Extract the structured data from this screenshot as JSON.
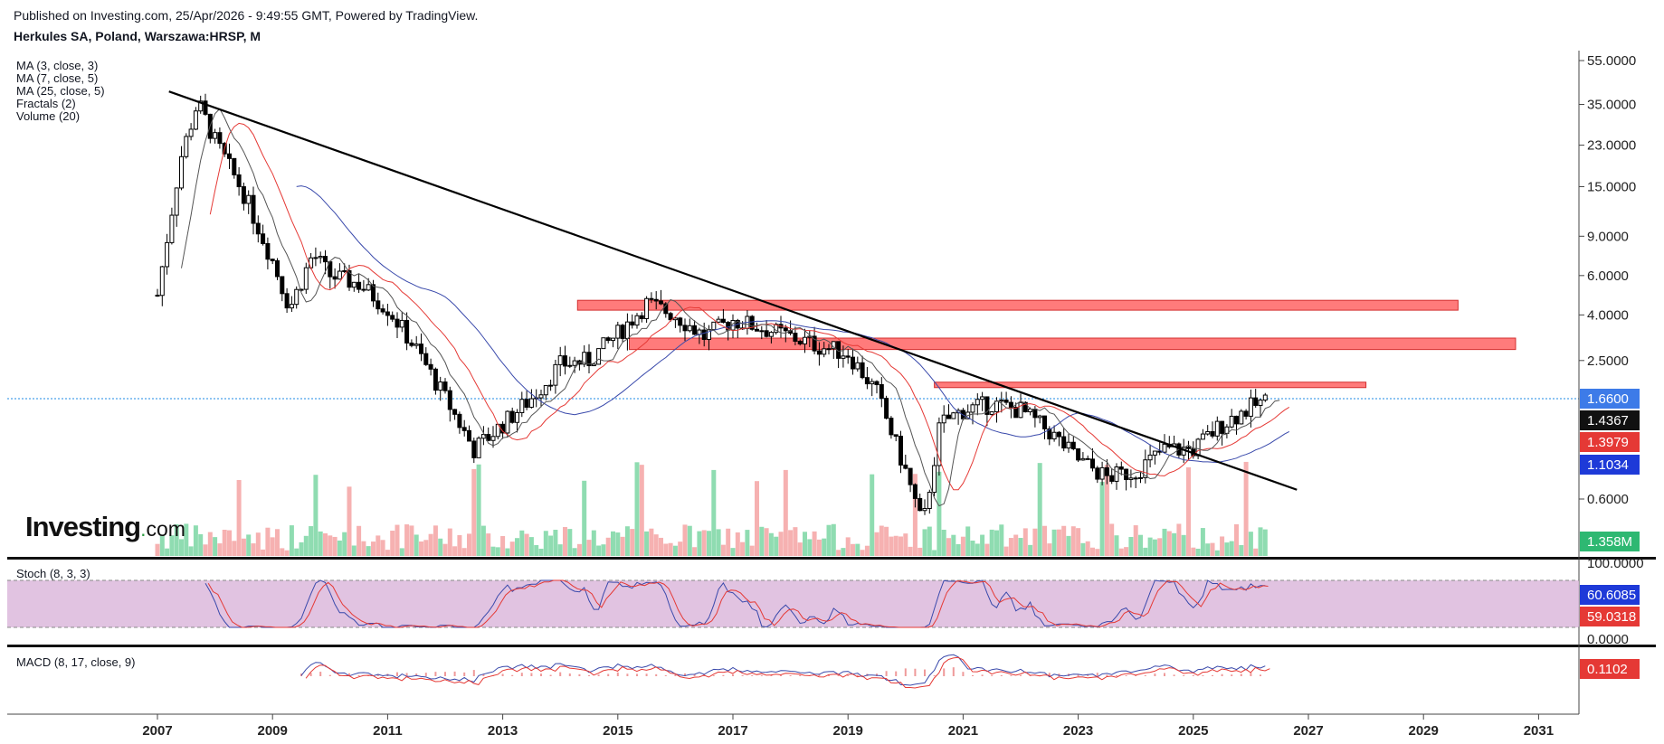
{
  "header": {
    "published": "Published on Investing.com, 25/Apr/2026 - 9:49:55 GMT, Powered by TradingView.",
    "symbol": "Herkules SA, Poland, Warszawa:HRSP, M"
  },
  "indicators": {
    "ma3": "MA (3, close, 3)",
    "ma7": "MA (7, close, 5)",
    "ma25": "MA (25, close, 5)",
    "fractals": "Fractals (2)",
    "volume": "Volume (20)"
  },
  "panels": {
    "stoch_label": "Stoch (8, 3, 3)",
    "macd_label": "MACD (8, 17, close, 9)"
  },
  "logo": {
    "main": "Investing",
    "suffix": "com"
  },
  "colors": {
    "up": "#26a69a",
    "down": "#ef5350",
    "candle": "#000000",
    "ma_fast": "#555555",
    "ma_mid": "#e53935",
    "ma_slow": "#3949ab",
    "zone": "#ff7b7b",
    "stoch_band": "#dcb8dc",
    "price_line": "#1e88e5"
  },
  "chart_data": {
    "type": "candlestick",
    "scale": "log",
    "price_axis_ticks": [
      "55.0000",
      "35.0000",
      "23.0000",
      "15.0000",
      "9.0000",
      "6.0000",
      "4.0000",
      "2.5000",
      "1.6600",
      "0.6000"
    ],
    "time_axis_ticks": [
      "2007",
      "2009",
      "2011",
      "2013",
      "2015",
      "2017",
      "2019",
      "2021",
      "2023",
      "2025",
      "2027",
      "2029",
      "2031"
    ],
    "last_values": {
      "current_price": "1.6600",
      "ma_fast": "1.4367",
      "ma_mid": "1.3979",
      "ma_slow": "1.1034",
      "volume": "1.358M",
      "stoch_k": "60.6085",
      "stoch_d": "59.0318",
      "macd": "0.1102"
    },
    "stoch_axis_ticks": [
      "100.0000",
      "0.0000"
    ],
    "price_path": [
      [
        2007.0,
        4.9
      ],
      [
        2007.4,
        20.0
      ],
      [
        2007.7,
        36.0
      ],
      [
        2008.0,
        24.0
      ],
      [
        2008.5,
        14.0
      ],
      [
        2009.0,
        7.0
      ],
      [
        2009.3,
        4.3
      ],
      [
        2009.7,
        7.5
      ],
      [
        2010.0,
        6.0
      ],
      [
        2010.5,
        5.5
      ],
      [
        2011.0,
        4.3
      ],
      [
        2011.5,
        2.8
      ],
      [
        2012.0,
        1.7
      ],
      [
        2012.5,
        1.0
      ],
      [
        2013.0,
        1.3
      ],
      [
        2013.5,
        1.7
      ],
      [
        2014.0,
        2.4
      ],
      [
        2014.5,
        2.5
      ],
      [
        2015.0,
        3.3
      ],
      [
        2015.5,
        4.5
      ],
      [
        2016.0,
        4.0
      ],
      [
        2016.5,
        3.2
      ],
      [
        2017.0,
        3.8
      ],
      [
        2017.5,
        3.5
      ],
      [
        2018.0,
        3.2
      ],
      [
        2018.5,
        2.9
      ],
      [
        2019.0,
        2.7
      ],
      [
        2019.5,
        1.8
      ],
      [
        2020.0,
        0.8
      ],
      [
        2020.3,
        0.45
      ],
      [
        2020.6,
        1.3
      ],
      [
        2021.0,
        1.5
      ],
      [
        2021.5,
        1.6
      ],
      [
        2022.0,
        1.5
      ],
      [
        2022.5,
        1.2
      ],
      [
        2023.0,
        0.9
      ],
      [
        2023.5,
        0.75
      ],
      [
        2024.0,
        0.8
      ],
      [
        2024.5,
        1.0
      ],
      [
        2025.0,
        1.0
      ],
      [
        2025.5,
        1.3
      ],
      [
        2026.0,
        1.55
      ],
      [
        2026.3,
        1.66
      ]
    ],
    "trendline": [
      [
        2007.2,
        40.0
      ],
      [
        2026.8,
        0.66
      ]
    ],
    "resistance_zones": [
      {
        "from": 2014.3,
        "to": 2029.6,
        "low": 4.2,
        "high": 4.65
      },
      {
        "from": 2015.2,
        "to": 2030.6,
        "low": 2.8,
        "high": 3.15
      },
      {
        "from": 2020.5,
        "to": 2028.0,
        "low": 1.9,
        "high": 2.0
      }
    ]
  }
}
